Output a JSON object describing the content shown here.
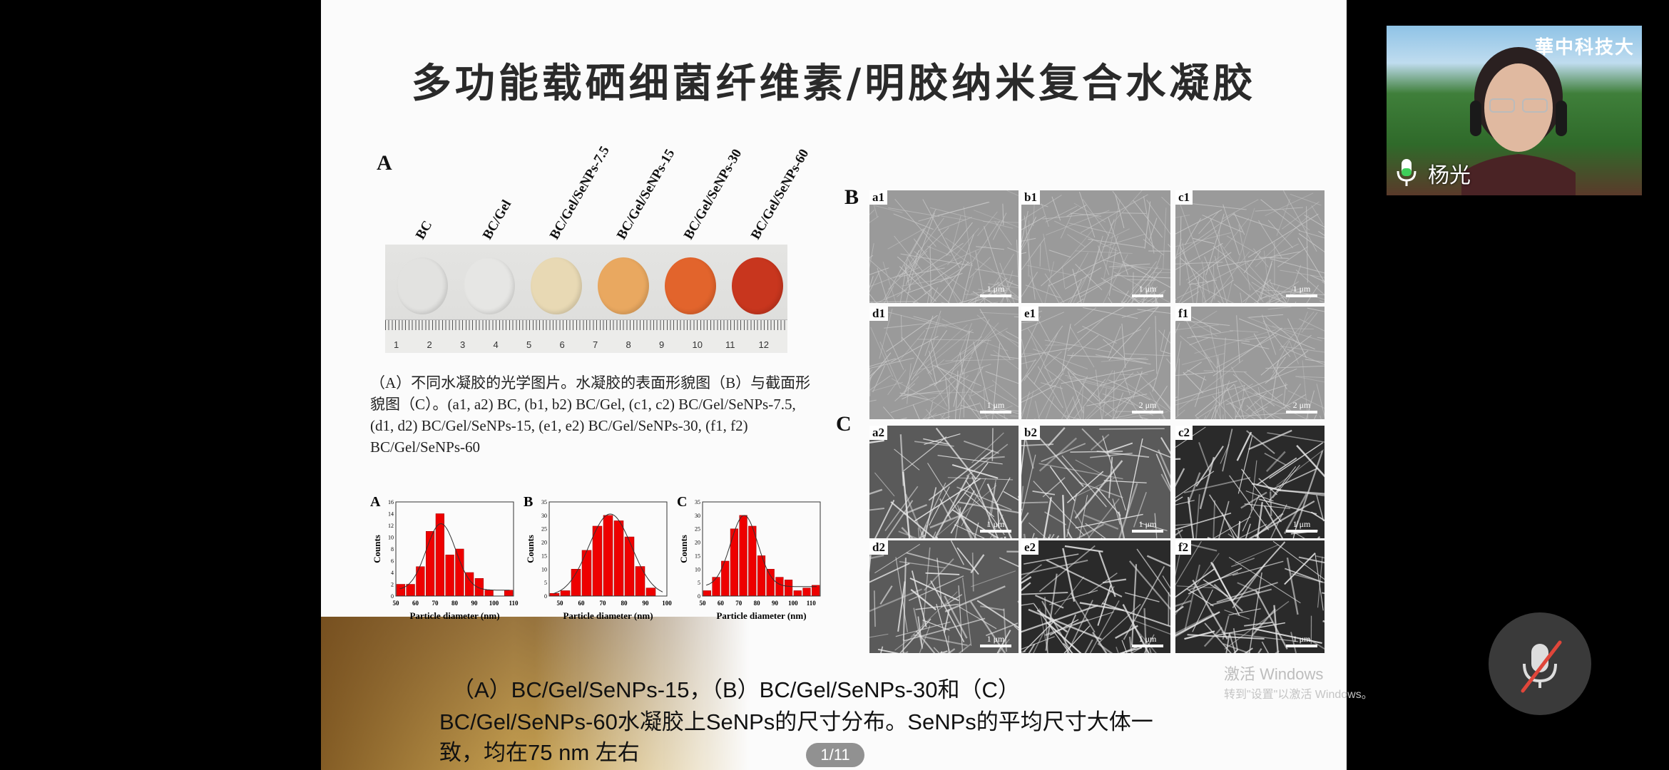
{
  "slide": {
    "title": "多功能载硒细菌纤维素/明胶纳米复合水凝胶",
    "panel_A_label": "A",
    "panel_B_label": "B",
    "panel_C_label": "C",
    "samples": [
      "BC",
      "BC/Gel",
      "BC/Gel/SeNPs-7.5",
      "BC/Gel/SeNPs-15",
      "BC/Gel/SeNPs-30",
      "BC/Gel/SeNPs-60"
    ],
    "sample_colors": [
      "#e2e2e0",
      "#e6e6e4",
      "#e8d9b4",
      "#e9a860",
      "#e2642c",
      "#c8361e"
    ],
    "ruler_numbers": [
      "1",
      "2",
      "3",
      "4",
      "5",
      "6",
      "7",
      "8",
      "9",
      "10",
      "11",
      "12"
    ],
    "caption": "（A）不同水凝胶的光学图片。水凝胶的表面形貌图（B）与截面形貌图（C）。(a1, a2) BC, (b1, b2) BC/Gel, (c1, c2) BC/Gel/SeNPs-7.5, (d1, d2) BC/Gel/SeNPs-15, (e1, e2) BC/Gel/SeNPs-30, (f1, f2) BC/Gel/SeNPs-60",
    "sem_panels": [
      {
        "label": "a1",
        "scale": "1 μm"
      },
      {
        "label": "b1",
        "scale": "1 μm"
      },
      {
        "label": "c1",
        "scale": "1 μm"
      },
      {
        "label": "d1",
        "scale": "1 μm"
      },
      {
        "label": "e1",
        "scale": "2 μm"
      },
      {
        "label": "f1",
        "scale": "2 μm"
      },
      {
        "label": "a2",
        "scale": "1 μm"
      },
      {
        "label": "b2",
        "scale": "1 μm"
      },
      {
        "label": "c2",
        "scale": "1 μm"
      },
      {
        "label": "d2",
        "scale": "1 μm"
      },
      {
        "label": "e2",
        "scale": "1 μm"
      },
      {
        "label": "f2",
        "scale": "1 μm"
      }
    ],
    "subtitle_lines": [
      "（A）BC/Gel/SeNPs-15，（B）BC/Gel/SeNPs-30和（C）",
      "BC/Gel/SeNPs-60水凝胶上SeNPs的尺寸分布。SeNPs的平均尺寸大体一",
      "致，均在75 nm 左右"
    ]
  },
  "chart_data": [
    {
      "type": "bar",
      "panel": "A",
      "xlabel": "Particle diameter (nm)",
      "ylabel": "Counts",
      "bin_start": 50,
      "bin_width": 5,
      "values": [
        2,
        2,
        5,
        11,
        14,
        7,
        8,
        4,
        3,
        1,
        0,
        1
      ],
      "xlim": [
        50,
        110
      ],
      "xticks": [
        50,
        60,
        70,
        80,
        90,
        100,
        110
      ],
      "ylim": [
        0,
        16
      ],
      "yticks": [
        0,
        2,
        4,
        6,
        8,
        10,
        12,
        14,
        16
      ],
      "fit": {
        "type": "gaussian",
        "center": 73,
        "amplitude": 11.3,
        "sigma": 7.5,
        "baseline": 1
      },
      "bar_color": "#ee0000"
    },
    {
      "type": "bar",
      "panel": "B",
      "xlabel": "Particle diameter (nm)",
      "ylabel": "Counts",
      "bin_start": 45,
      "bin_width": 5,
      "values": [
        1,
        2,
        10,
        17,
        26,
        30,
        28,
        22,
        11,
        3
      ],
      "xlim": [
        45,
        100
      ],
      "xticks": [
        50,
        60,
        70,
        80,
        90,
        100
      ],
      "ylim": [
        0,
        35
      ],
      "yticks": [
        0,
        5,
        10,
        15,
        20,
        25,
        30,
        35
      ],
      "fit": {
        "type": "gaussian",
        "center": 73.5,
        "amplitude": 30.5,
        "sigma": 10,
        "baseline": 0
      },
      "bar_color": "#ee0000"
    },
    {
      "type": "bar",
      "panel": "C",
      "xlabel": "Particle diameter (nm)",
      "ylabel": "Counts",
      "bin_start": 50,
      "bin_width": 5,
      "values": [
        2,
        7,
        13,
        25,
        30,
        26,
        15,
        10,
        7,
        6,
        2,
        3,
        4
      ],
      "xlim": [
        50,
        115
      ],
      "xticks": [
        50,
        60,
        70,
        80,
        90,
        100,
        110
      ],
      "ylim": [
        0,
        35
      ],
      "yticks": [
        0,
        5,
        10,
        15,
        20,
        25,
        30,
        35
      ],
      "fit": {
        "type": "gaussian",
        "center": 73,
        "amplitude": 26.5,
        "sigma": 7.5,
        "baseline": 3.5
      },
      "bar_color": "#ee0000"
    }
  ],
  "video": {
    "name": "杨光",
    "background_text": "華中科技大"
  },
  "page_indicator": "1/11",
  "watermark": {
    "line1": "激活 Windows",
    "line2": "转到\"设置\"以激活 Windows。"
  },
  "mic_state": "muted"
}
